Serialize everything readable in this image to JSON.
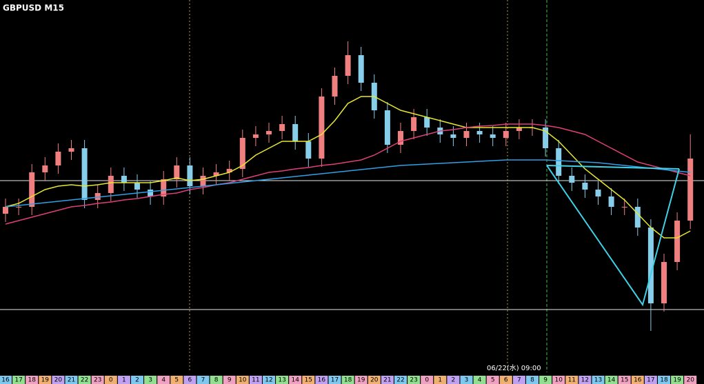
{
  "chart_data": {
    "type": "candlestick",
    "title": "GBPUSD M15",
    "annotation": "06/22(水) 09:00",
    "categories": [
      "16",
      "17",
      "18",
      "19",
      "20",
      "21",
      "22",
      "23",
      "0",
      "1",
      "2",
      "3",
      "4",
      "5",
      "6",
      "7",
      "8",
      "9",
      "10",
      "11",
      "12",
      "13",
      "14",
      "15",
      "16",
      "17",
      "18",
      "19",
      "20",
      "21",
      "22",
      "23",
      "0",
      "1",
      "2",
      "3",
      "4",
      "5",
      "6",
      "7",
      "8",
      "9",
      "10",
      "11",
      "12",
      "13",
      "14",
      "15",
      "16",
      "17",
      "18",
      "19",
      "20"
    ],
    "open": [
      230,
      240,
      240,
      290,
      300,
      320,
      325,
      250,
      260,
      285,
      275,
      265,
      255,
      280,
      300,
      270,
      285,
      290,
      295,
      340,
      345,
      350,
      360,
      335,
      310,
      400,
      430,
      460,
      420,
      380,
      330,
      350,
      370,
      355,
      345,
      340,
      350,
      345,
      340,
      350,
      355,
      355,
      325,
      285,
      275,
      265,
      255,
      240,
      240,
      210,
      100,
      160,
      220
    ],
    "close": [
      240,
      240,
      290,
      300,
      320,
      325,
      250,
      260,
      285,
      275,
      265,
      255,
      280,
      300,
      270,
      285,
      290,
      295,
      340,
      345,
      350,
      360,
      335,
      310,
      400,
      430,
      460,
      420,
      380,
      330,
      350,
      370,
      355,
      345,
      340,
      350,
      345,
      340,
      350,
      355,
      355,
      325,
      285,
      275,
      265,
      255,
      240,
      240,
      210,
      100,
      160,
      220,
      310
    ],
    "high": [
      252,
      252,
      302,
      312,
      332,
      337,
      337,
      272,
      297,
      297,
      287,
      277,
      292,
      312,
      312,
      297,
      302,
      307,
      352,
      357,
      362,
      372,
      372,
      347,
      412,
      442,
      480,
      472,
      432,
      392,
      362,
      382,
      382,
      367,
      357,
      362,
      362,
      357,
      362,
      367,
      367,
      367,
      337,
      297,
      287,
      277,
      267,
      252,
      252,
      222,
      172,
      232,
      345
    ],
    "low": [
      218,
      228,
      228,
      278,
      288,
      308,
      238,
      238,
      248,
      263,
      253,
      243,
      243,
      268,
      258,
      258,
      273,
      278,
      283,
      328,
      333,
      338,
      323,
      298,
      298,
      388,
      418,
      408,
      368,
      318,
      318,
      338,
      343,
      333,
      328,
      328,
      333,
      328,
      328,
      338,
      343,
      313,
      273,
      263,
      253,
      243,
      228,
      228,
      198,
      60,
      88,
      148,
      208
    ],
    "up_color": "#f08080",
    "down_color": "#87ceeb",
    "series": [
      {
        "name": "ma-short",
        "color": "#e8e830",
        "values": [
          240,
          245,
          255,
          265,
          270,
          272,
          270,
          272,
          275,
          275,
          275,
          275,
          278,
          282,
          278,
          280,
          285,
          290,
          300,
          315,
          325,
          335,
          335,
          335,
          345,
          365,
          390,
          400,
          400,
          390,
          380,
          375,
          370,
          365,
          360,
          355,
          355,
          355,
          355,
          355,
          355,
          350,
          335,
          315,
          295,
          280,
          265,
          250,
          230,
          210,
          195,
          195,
          205
        ]
      },
      {
        "name": "ma-mid",
        "color": "#e0407a",
        "values": [
          215,
          220,
          225,
          230,
          235,
          240,
          242,
          245,
          247,
          250,
          252,
          255,
          258,
          260,
          265,
          268,
          272,
          275,
          280,
          285,
          290,
          292,
          295,
          297,
          300,
          302,
          305,
          308,
          315,
          325,
          335,
          340,
          345,
          350,
          352,
          355,
          357,
          358,
          360,
          360,
          360,
          358,
          355,
          350,
          345,
          335,
          325,
          315,
          305,
          300,
          295,
          290,
          285
        ]
      },
      {
        "name": "ma-long",
        "color": "#30a0e8",
        "values": [
          240,
          242,
          244,
          246,
          248,
          250,
          252,
          254,
          256,
          258,
          260,
          262,
          264,
          266,
          268,
          270,
          272,
          274,
          276,
          278,
          280,
          282,
          284,
          286,
          288,
          290,
          292,
          294,
          296,
          298,
          300,
          301,
          302,
          303,
          304,
          305,
          306,
          307,
          308,
          308,
          308,
          308,
          307,
          306,
          305,
          304,
          302,
          300,
          298,
          296,
          294,
          292,
          290
        ]
      }
    ],
    "hlines": [
      278,
      91
    ],
    "ylim": [
      0,
      540
    ]
  }
}
